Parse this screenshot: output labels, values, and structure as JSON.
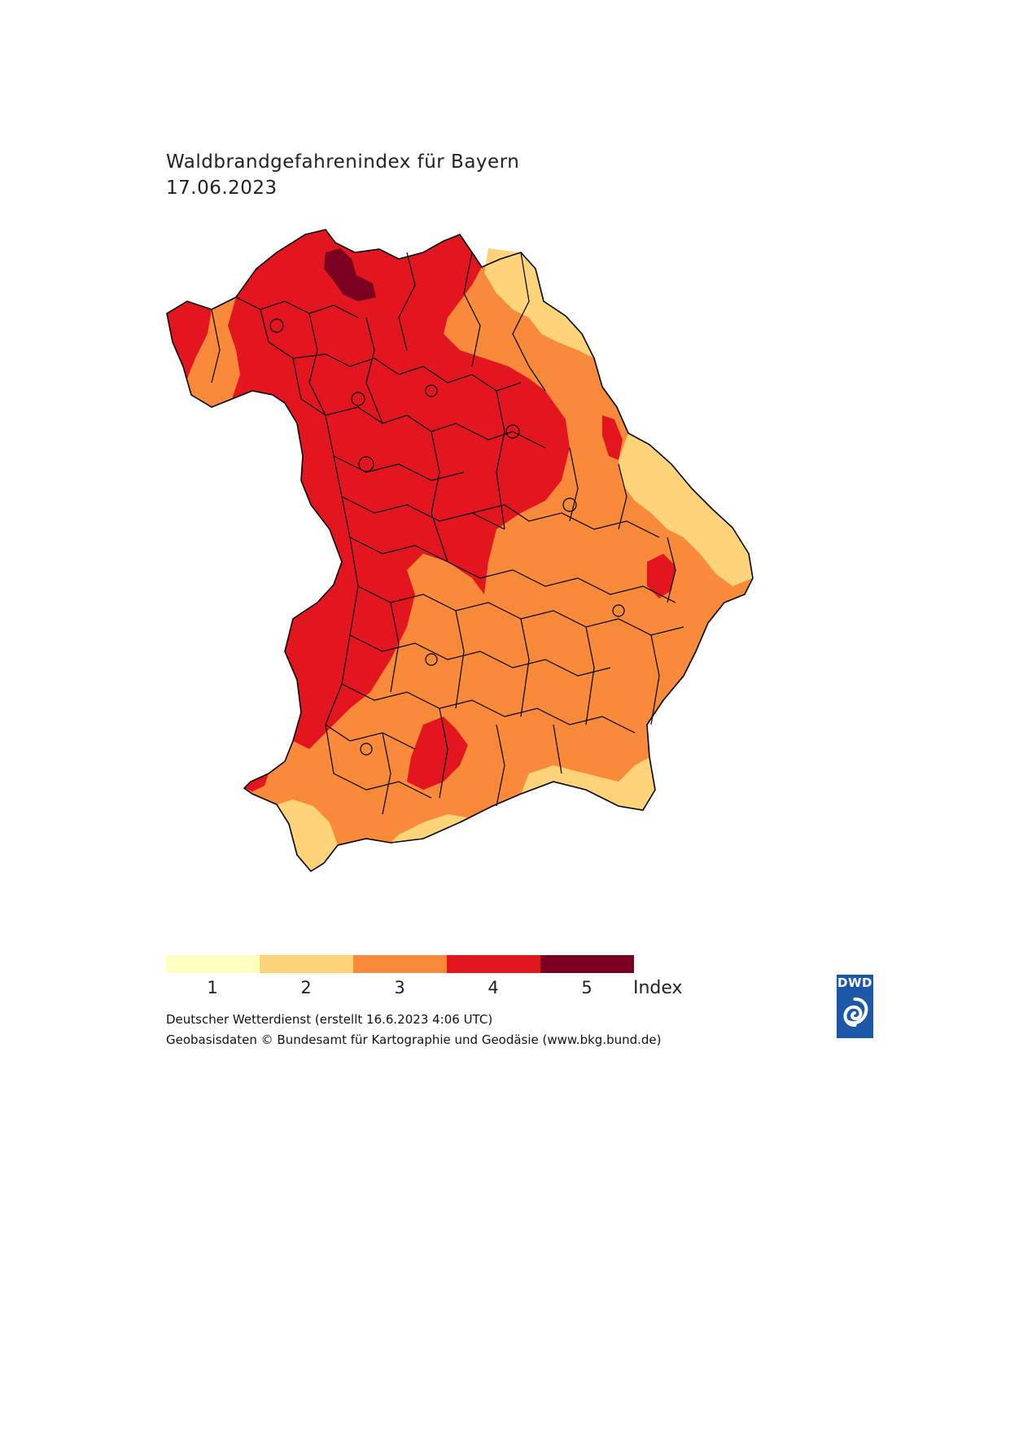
{
  "header": {
    "title": "Waldbrandgefahrenindex für Bayern",
    "date": "17.06.2023"
  },
  "legend": {
    "items": [
      {
        "label": "1",
        "color": "#ffffc0"
      },
      {
        "label": "2",
        "color": "#ffd479"
      },
      {
        "label": "3",
        "color": "#f98a3a"
      },
      {
        "label": "4",
        "color": "#e3161f"
      },
      {
        "label": "5",
        "color": "#7a0020"
      }
    ],
    "unit": "Index"
  },
  "map": {
    "region": "Bayern",
    "border_color": "#000000"
  },
  "credits": {
    "line1": "Deutscher Wetterdienst (erstellt 16.6.2023 4:06 UTC)",
    "line2": "Geobasisdaten © Bundesamt für Kartographie und Geodäsie (www.bkg.bund.de)"
  },
  "logo": {
    "text": "DWD",
    "icon": "dwd-swirl-icon",
    "color": "#1c57a8"
  }
}
